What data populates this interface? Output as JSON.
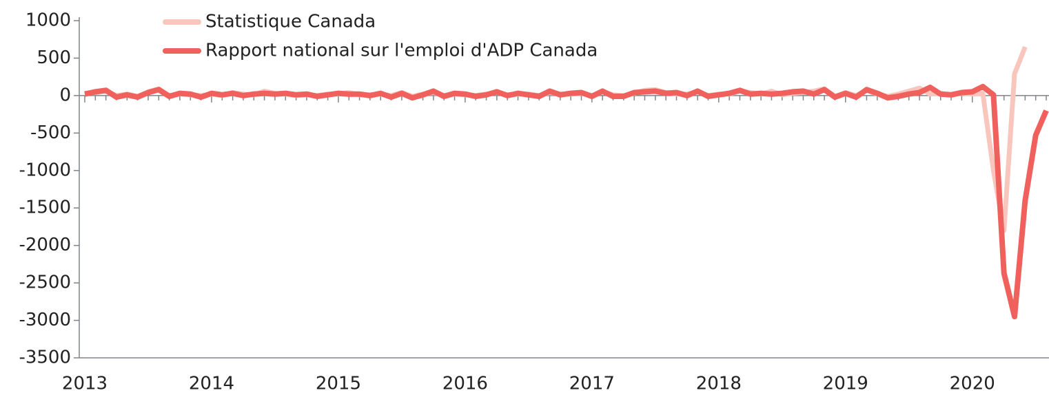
{
  "chart_data": {
    "type": "line",
    "categories": [
      "2013",
      null,
      null,
      null,
      null,
      null,
      null,
      null,
      null,
      null,
      null,
      null,
      "2014",
      null,
      null,
      null,
      null,
      null,
      null,
      null,
      null,
      null,
      null,
      null,
      "2015",
      null,
      null,
      null,
      null,
      null,
      null,
      null,
      null,
      null,
      null,
      null,
      "2016",
      null,
      null,
      null,
      null,
      null,
      null,
      null,
      null,
      null,
      null,
      null,
      "2017",
      null,
      null,
      null,
      null,
      null,
      null,
      null,
      null,
      null,
      null,
      null,
      "2018",
      null,
      null,
      null,
      null,
      null,
      null,
      null,
      null,
      null,
      null,
      null,
      "2019",
      null,
      null,
      null,
      null,
      null,
      null,
      null,
      null,
      null,
      null,
      null,
      "2020",
      null,
      null,
      null,
      null,
      null,
      null,
      null
    ],
    "series": [
      {
        "name": "Statistique Canada",
        "color": "#f9c6bd",
        "values": [
          30,
          40,
          60,
          0,
          20,
          -10,
          50,
          90,
          0,
          20,
          10,
          0,
          20,
          0,
          40,
          20,
          10,
          60,
          30,
          20,
          0,
          10,
          0,
          20,
          20,
          40,
          10,
          10,
          20,
          0,
          40,
          -10,
          20,
          40,
          0,
          20,
          10,
          0,
          20,
          40,
          10,
          20,
          20,
          0,
          40,
          20,
          20,
          30,
          0,
          50,
          10,
          0,
          30,
          70,
          80,
          40,
          20,
          20,
          50,
          0,
          20,
          20,
          60,
          40,
          20,
          60,
          10,
          30,
          40,
          60,
          90,
          -10,
          40,
          0,
          70,
          20,
          -10,
          20,
          60,
          100,
          20,
          30,
          10,
          30,
          20,
          30,
          -1000,
          -1800,
          290,
          650,
          null,
          null
        ]
      },
      {
        "name": "Rapport national sur l'emploi d'ADP Canada",
        "color": "#f0605d",
        "values": [
          20,
          50,
          70,
          -20,
          10,
          -20,
          40,
          80,
          -10,
          30,
          20,
          -20,
          30,
          10,
          30,
          0,
          20,
          30,
          20,
          30,
          10,
          20,
          -10,
          10,
          30,
          20,
          20,
          0,
          30,
          -20,
          30,
          -30,
          10,
          60,
          -10,
          30,
          20,
          -10,
          10,
          50,
          0,
          30,
          10,
          -10,
          60,
          10,
          30,
          40,
          -10,
          60,
          -10,
          -10,
          40,
          50,
          60,
          30,
          40,
          0,
          60,
          -10,
          10,
          30,
          70,
          20,
          30,
          20,
          30,
          50,
          60,
          20,
          80,
          -20,
          30,
          -20,
          80,
          30,
          -30,
          -10,
          20,
          40,
          110,
          20,
          10,
          40,
          50,
          120,
          10,
          -2370,
          -2950,
          -1400,
          -530,
          -200
        ]
      }
    ],
    "ylim": [
      -3500,
      1000
    ],
    "yticks": [
      -3500,
      -3000,
      -2500,
      -2000,
      -1500,
      -1000,
      -500,
      0,
      500,
      1000
    ],
    "grid": false,
    "legend": "top-left"
  }
}
